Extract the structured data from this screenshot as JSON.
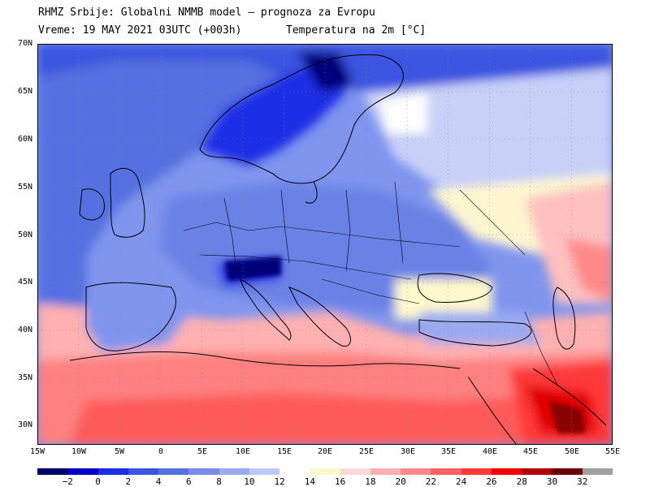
{
  "header": {
    "line1": "RHMZ Srbije: Globalni NMMB model — prognoza za Evropu",
    "line2": "Vreme: 19 MAY 2021 03UTC (+003h)",
    "line3": "Temperatura na 2m [°C]"
  },
  "axes": {
    "lat_labels": [
      "70N",
      "65N",
      "60N",
      "55N",
      "50N",
      "45N",
      "40N",
      "35N",
      "30N"
    ],
    "lon_labels": [
      "15W",
      "10W",
      "5W",
      "0",
      "5E",
      "10E",
      "15E",
      "20E",
      "25E",
      "30E",
      "35E",
      "40E",
      "45E",
      "50E",
      "55E"
    ]
  },
  "legend": {
    "ticks": [
      "−2",
      "0",
      "2",
      "4",
      "6",
      "8",
      "10",
      "12",
      "14",
      "16",
      "18",
      "20",
      "22",
      "24",
      "26",
      "28",
      "30",
      "32"
    ],
    "colors": [
      "#00006a",
      "#0000c8",
      "#1a2ee6",
      "#3a55e0",
      "#5570e0",
      "#7a8ee8",
      "#9aaaf0",
      "#c0c8f8",
      "#ffffff",
      "#fff8c8",
      "#ffd8d8",
      "#ffb0b0",
      "#ff8888",
      "#ff6060",
      "#ff3838",
      "#f00000",
      "#b00000",
      "#6a0000",
      "#a0a0a0"
    ]
  }
}
